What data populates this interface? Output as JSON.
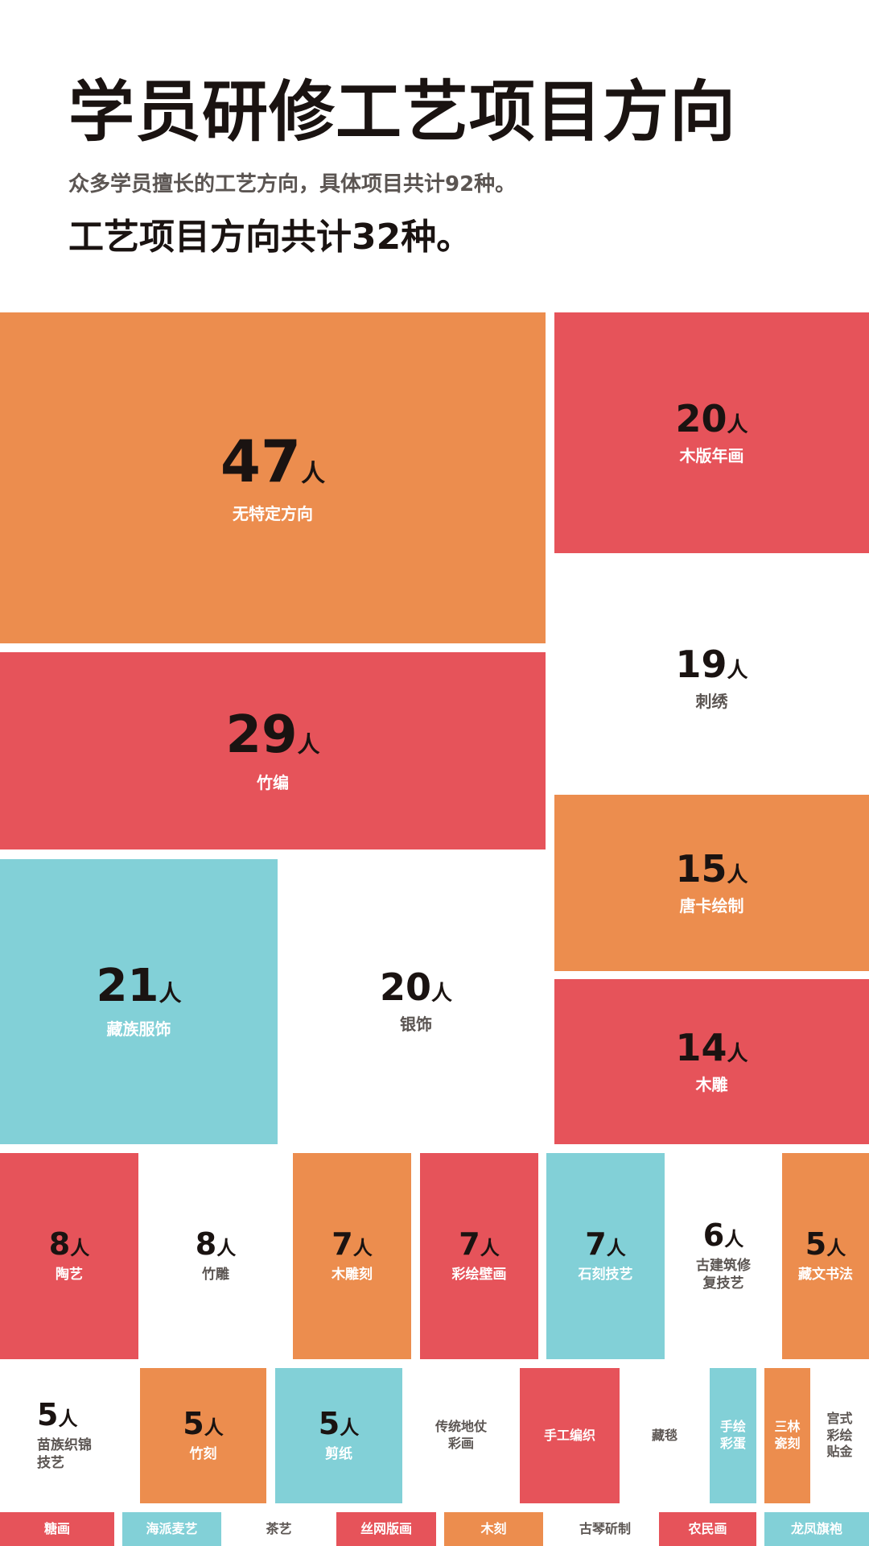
{
  "title": "学员研修工艺项目方向",
  "subtitle": "众多学员擅长的工艺方向，具体项目共计92种。",
  "highlight": "工艺项目方向共计32种。",
  "colors": {
    "orange": "#ec8d4e",
    "red": "#e6535a",
    "teal": "#82d0d7",
    "white": "#ffffff",
    "text_dark": "#1a1311",
    "text_grey": "#5b5552"
  },
  "chart_data": {
    "type": "treemap",
    "unit": "人",
    "items": [
      {
        "id": "wutedingfangxiang",
        "label": "无特定方向",
        "value": 47,
        "color": "orange"
      },
      {
        "id": "mubannianhua",
        "label": "木版年画",
        "value": 20,
        "color": "red"
      },
      {
        "id": "zhubian",
        "label": "竹编",
        "value": 29,
        "color": "red"
      },
      {
        "id": "cixiu",
        "label": "刺绣",
        "value": 19,
        "color": "white"
      },
      {
        "id": "tangkahuizhi",
        "label": "唐卡绘制",
        "value": 15,
        "color": "orange"
      },
      {
        "id": "zangzufushi",
        "label": "藏族服饰",
        "value": 21,
        "color": "teal"
      },
      {
        "id": "yinshi",
        "label": "银饰",
        "value": 20,
        "color": "white"
      },
      {
        "id": "mudiao",
        "label": "木雕",
        "value": 14,
        "color": "red"
      },
      {
        "id": "taoyi",
        "label": "陶艺",
        "value": 8,
        "color": "red"
      },
      {
        "id": "zhudiao",
        "label": "竹雕",
        "value": 8,
        "color": "white"
      },
      {
        "id": "mudiaoke",
        "label": "木雕刻",
        "value": 7,
        "color": "orange"
      },
      {
        "id": "caihuibihua",
        "label": "彩绘壁画",
        "value": 7,
        "color": "red"
      },
      {
        "id": "shikejiyi",
        "label": "石刻技艺",
        "value": 7,
        "color": "teal"
      },
      {
        "id": "gujianzhuxiufujiyi",
        "label": "古建筑修\n复技艺",
        "value": 6,
        "color": "white"
      },
      {
        "id": "zangwenshufa",
        "label": "藏文书法",
        "value": 5,
        "color": "orange"
      },
      {
        "id": "miaozuzhijinjiyi",
        "label": "苗族织锦\n技艺",
        "value": 5,
        "color": "white"
      },
      {
        "id": "zhuke",
        "label": "竹刻",
        "value": 5,
        "color": "orange"
      },
      {
        "id": "jianzhi",
        "label": "剪纸",
        "value": 5,
        "color": "teal"
      },
      {
        "id": "chuantongdizhangcaihua",
        "label": "传统地仗\n彩画",
        "value": null,
        "color": "white"
      },
      {
        "id": "shougongbianzhi",
        "label": "手工编织",
        "value": null,
        "color": "red"
      },
      {
        "id": "zangtan",
        "label": "藏毯",
        "value": null,
        "color": "white"
      },
      {
        "id": "shouhuicaidan",
        "label": "手绘\n彩蛋",
        "value": null,
        "color": "teal"
      },
      {
        "id": "sanlinmengke",
        "label": "三林\n瓷刻",
        "value": null,
        "color": "orange"
      },
      {
        "id": "gongshicaihuitiejin",
        "label": "宫式\n彩绘\n贴金",
        "value": null,
        "color": "white"
      },
      {
        "id": "tanghua",
        "label": "糖画",
        "value": null,
        "color": "red"
      },
      {
        "id": "haipaimaiyi",
        "label": "海派麦艺",
        "value": null,
        "color": "teal"
      },
      {
        "id": "chayi",
        "label": "茶艺",
        "value": null,
        "color": "white"
      },
      {
        "id": "siwangbanhua",
        "label": "丝网版画",
        "value": null,
        "color": "red"
      },
      {
        "id": "muke",
        "label": "木刻",
        "value": null,
        "color": "orange"
      },
      {
        "id": "guqinyanzhi",
        "label": "古琴斫制",
        "value": null,
        "color": "white"
      },
      {
        "id": "nongminhua",
        "label": "农民画",
        "value": null,
        "color": "red"
      },
      {
        "id": "longfengqipao",
        "label": "龙凤旗袍",
        "value": null,
        "color": "teal"
      }
    ]
  }
}
